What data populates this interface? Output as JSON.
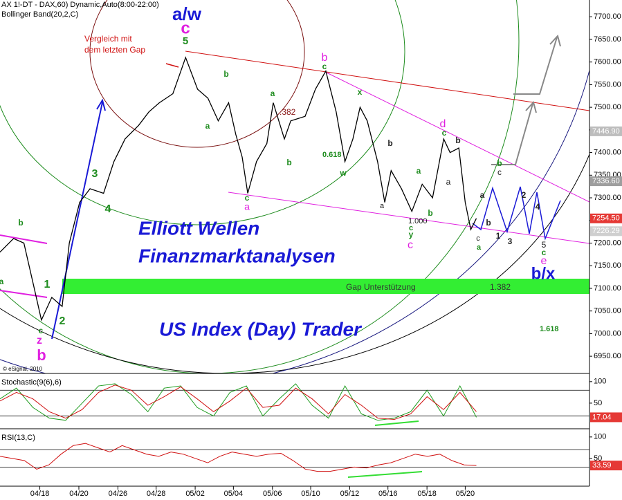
{
  "chart_data": {
    "type": "line",
    "title": "AX 1!-DT - DAX,60) Dynamic,Auto(8:00-22:00)",
    "subtitle": "Bollinger Band(20,2,C)",
    "copyright": "© eSignal, 2010",
    "xlim": [
      0,
      74
    ],
    "xticks": [
      {
        "value": 5,
        "label": "04/18"
      },
      {
        "value": 9.9,
        "label": "04/20"
      },
      {
        "value": 14.8,
        "label": "04/26"
      },
      {
        "value": 19.6,
        "label": "04/28"
      },
      {
        "value": 24.5,
        "label": "05/02"
      },
      {
        "value": 29.3,
        "label": "05/04"
      },
      {
        "value": 34.2,
        "label": "05/06"
      },
      {
        "value": 39,
        "label": "05/10"
      },
      {
        "value": 43.9,
        "label": "05/12"
      },
      {
        "value": 48.7,
        "label": "05/16"
      },
      {
        "value": 53.6,
        "label": "05/18"
      },
      {
        "value": 58.4,
        "label": "05/20"
      }
    ],
    "ylim": [
      6912,
      7737
    ],
    "yticks": [
      {
        "value": 6950,
        "label": "6950.00"
      },
      {
        "value": 7000,
        "label": "7000.00"
      },
      {
        "value": 7050,
        "label": "7050.00"
      },
      {
        "value": 7100,
        "label": "7100.00"
      },
      {
        "value": 7150,
        "label": "7150.00"
      },
      {
        "value": 7200,
        "label": "7200.00"
      },
      {
        "value": 7250,
        "label": "7250.00"
      },
      {
        "value": 7300,
        "label": "7300.00"
      },
      {
        "value": 7350,
        "label": "7350.00"
      },
      {
        "value": 7400,
        "label": "7400.00"
      },
      {
        "value": 7450,
        "label": "7450.00"
      },
      {
        "value": 7500,
        "label": "7500.00"
      },
      {
        "value": 7550,
        "label": "7550.00"
      },
      {
        "value": 7600,
        "label": "7600.00"
      },
      {
        "value": 7650,
        "label": "7650.00"
      },
      {
        "value": 7700,
        "label": "7700.00"
      }
    ],
    "price_labels": [
      {
        "value": 7446.9,
        "label": "7446.90",
        "color": "#bdbdbd"
      },
      {
        "value": 7336.6,
        "label": "7336.60",
        "color": "#9e9e9e"
      },
      {
        "value": 7254.5,
        "label": "7254.50",
        "color": "#e53935"
      },
      {
        "value": 7226.29,
        "label": "7226.29",
        "color": "#cfcfcf"
      }
    ],
    "series": [
      {
        "name": "DAX",
        "color": "#000000",
        "x": [
          0,
          1.7,
          3.0,
          4.3,
          5.2,
          6.5,
          7.8,
          8.7,
          10.0,
          11.3,
          13.0,
          14.3,
          15.7,
          17.4,
          18.7,
          20.0,
          21.7,
          23.3,
          24.8,
          26.1,
          27.4,
          28.7,
          29.6,
          30.4,
          31.1,
          32.2,
          33.5,
          34.3,
          35.7,
          36.5,
          38.3,
          39.6,
          40.9,
          42.2,
          43.3,
          44.3,
          45.2,
          46.1,
          47.4,
          48.3,
          49.1,
          50.4,
          51.7,
          53.0,
          54.3,
          55.7,
          56.5,
          57.6,
          58.4,
          59.1,
          59.8
        ],
        "values": [
          7180,
          7210,
          7200,
          7100,
          7030,
          7080,
          7060,
          7200,
          7290,
          7320,
          7310,
          7380,
          7430,
          7460,
          7490,
          7510,
          7530,
          7610,
          7540,
          7520,
          7470,
          7510,
          7440,
          7390,
          7310,
          7380,
          7420,
          7510,
          7430,
          7470,
          7480,
          7540,
          7580,
          7490,
          7380,
          7430,
          7500,
          7470,
          7380,
          7290,
          7360,
          7320,
          7270,
          7330,
          7300,
          7430,
          7400,
          7410,
          7290,
          7230,
          7254.5
        ]
      }
    ],
    "annotations": [
      {
        "text": "a/w",
        "color": "#1a1ad6"
      },
      {
        "text": "c",
        "color": "#e020e0"
      },
      {
        "text": "5",
        "color": "#1e8c1e"
      },
      {
        "text": "Vergleich mit",
        "color": "#d01010"
      },
      {
        "text": "dem letzten Gap",
        "color": "#d01010"
      },
      {
        "text": "b",
        "color": "#1e8c1e"
      },
      {
        "text": "a",
        "color": "#1e8c1e"
      },
      {
        "text": "1",
        "color": "#1e8c1e"
      },
      {
        "text": "2",
        "color": "#1e8c1e"
      },
      {
        "text": "3",
        "color": "#1e8c1e"
      },
      {
        "text": "4",
        "color": "#1e8c1e"
      },
      {
        "text": "c",
        "color": "#1e8c1e"
      },
      {
        "text": "z",
        "color": "#e020e0"
      },
      {
        "text": "b",
        "color": "#e020e0"
      },
      {
        "text": "b",
        "color": "#1e8c1e"
      },
      {
        "text": "a",
        "color": "#1e8c1e"
      },
      {
        "text": "c",
        "color": "#1e8c1e"
      },
      {
        "text": "a",
        "color": "#e020e0"
      },
      {
        "text": "a",
        "color": "#1e8c1e"
      },
      {
        "text": "b",
        "color": "#1e8c1e"
      },
      {
        "text": ".382",
        "color": "#8b1a1a"
      },
      {
        "text": "b",
        "color": "#e020e0"
      },
      {
        "text": "c",
        "color": "#1e8c1e"
      },
      {
        "text": "x",
        "color": "#1e8c1e"
      },
      {
        "text": "0.618",
        "color": "#1e8c1e"
      },
      {
        "text": "w",
        "color": "#1e8c1e"
      },
      {
        "text": "b",
        "color": "#222222"
      },
      {
        "text": "a",
        "color": "#222222"
      },
      {
        "text": "a",
        "color": "#1e8c1e"
      },
      {
        "text": "b",
        "color": "#1e8c1e"
      },
      {
        "text": "1.000",
        "color": "#222222"
      },
      {
        "text": "c",
        "color": "#1e8c1e"
      },
      {
        "text": "y",
        "color": "#1e8c1e"
      },
      {
        "text": "c",
        "color": "#e020e0"
      },
      {
        "text": "d",
        "color": "#e020e0"
      },
      {
        "text": "c",
        "color": "#1e8c1e"
      },
      {
        "text": "b",
        "color": "#222222"
      },
      {
        "text": "a",
        "color": "#222222"
      },
      {
        "text": "c",
        "color": "#222222"
      },
      {
        "text": "a",
        "color": "#1e8c1e"
      },
      {
        "text": "a",
        "color": "#222222"
      },
      {
        "text": "b",
        "color": "#222222"
      },
      {
        "text": "b",
        "color": "#1e8c1e"
      },
      {
        "text": "c",
        "color": "#222222"
      },
      {
        "text": "1",
        "color": "#222222"
      },
      {
        "text": "3",
        "color": "#222222"
      },
      {
        "text": "2",
        "color": "#222222"
      },
      {
        "text": "4",
        "color": "#222222"
      },
      {
        "text": "5",
        "color": "#222222"
      },
      {
        "text": "c",
        "color": "#1e8c1e"
      },
      {
        "text": "e",
        "color": "#e020e0"
      },
      {
        "text": "b/x",
        "color": "#1a1ad6"
      },
      {
        "text": "Elliott Wellen",
        "color": "#1a1ad6"
      },
      {
        "text": "Finanzmarktanalysen",
        "color": "#1a1ad6"
      },
      {
        "text": "Gap Unterstützung",
        "color": "#333333"
      },
      {
        "text": "1.382",
        "color": "#333333"
      },
      {
        "text": "US Index (Day) Trader",
        "color": "#1a1ad6"
      },
      {
        "text": "1.618",
        "color": "#1e8c1e"
      }
    ],
    "stochastic": {
      "title": "Stochastic(9(6),6)",
      "ylim": [
        0,
        111
      ],
      "yticks": [
        50,
        100
      ],
      "levels": [
        80,
        20
      ],
      "value_label": "17.04",
      "series": [
        {
          "name": "%K",
          "color": "#1e9c1e",
          "values": [
            60,
            85,
            40,
            15,
            10,
            50,
            90,
            95,
            70,
            30,
            85,
            90,
            40,
            20,
            75,
            90,
            20,
            60,
            95,
            45,
            15,
            90,
            25,
            10,
            15,
            30,
            80,
            20,
            90,
            17.04
          ]
        },
        {
          "name": "%D",
          "color": "#d01010",
          "values": [
            55,
            75,
            60,
            30,
            15,
            35,
            75,
            92,
            80,
            45,
            65,
            88,
            60,
            30,
            55,
            85,
            40,
            45,
            85,
            60,
            25,
            70,
            45,
            15,
            12,
            25,
            65,
            35,
            75,
            30
          ]
        }
      ]
    },
    "rsi": {
      "title": "RSI(13,C)",
      "ylim": [
        0,
        111
      ],
      "yticks": [
        50,
        100
      ],
      "levels": [
        70,
        30
      ],
      "value_label": "33.59",
      "series": [
        {
          "name": "RSI",
          "color": "#d01010",
          "values": [
            55,
            50,
            45,
            25,
            35,
            60,
            80,
            85,
            75,
            65,
            80,
            70,
            60,
            55,
            65,
            60,
            50,
            40,
            55,
            65,
            60,
            55,
            60,
            62,
            45,
            25,
            20,
            20,
            25,
            30,
            28,
            35,
            40,
            50,
            60,
            55,
            60,
            45,
            35,
            33.59
          ]
        }
      ]
    }
  }
}
